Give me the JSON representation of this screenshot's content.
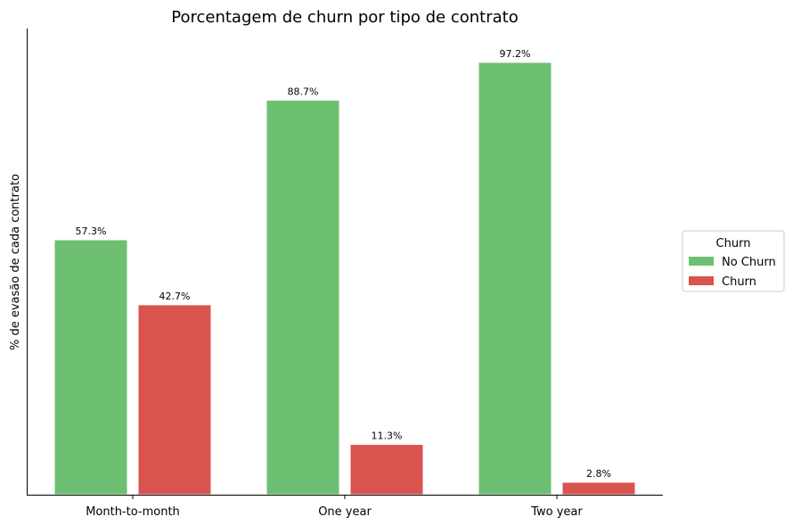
{
  "chart_data": {
    "type": "bar",
    "title": "Porcentagem de churn por tipo de contrato",
    "xlabel": "",
    "ylabel": "% de evasão de cada contrato",
    "categories": [
      "Month-to-month",
      "One year",
      "Two year"
    ],
    "series": [
      {
        "name": "No Churn",
        "color": "#6dbf71",
        "values": [
          57.3,
          88.7,
          97.2
        ],
        "labels": [
          "57.3%",
          "88.7%",
          "97.2%"
        ]
      },
      {
        "name": "Churn",
        "color": "#d9534f",
        "values": [
          42.7,
          11.3,
          2.8
        ],
        "labels": [
          "42.7%",
          "11.3%",
          "2.8%"
        ]
      }
    ],
    "ylim": [
      0,
      102
    ],
    "yticks_visible": false,
    "grid": false,
    "legend": {
      "title": "Churn",
      "placement": "right-outside",
      "entries": [
        "No Churn",
        "Churn"
      ]
    }
  }
}
